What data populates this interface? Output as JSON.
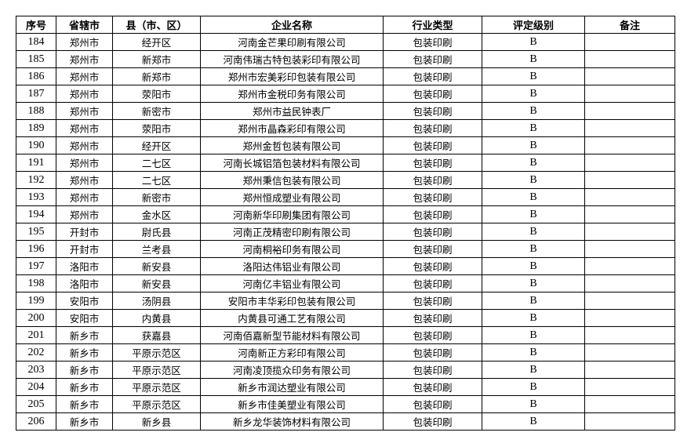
{
  "table": {
    "headers": [
      "序号",
      "省辖市",
      "县（市、区）",
      "企业名称",
      "行业类型",
      "评定级别",
      "备注"
    ],
    "rows": [
      [
        184,
        "郑州市",
        "经开区",
        "河南金芒果印刷有限公司",
        "包装印刷",
        "B"
      ],
      [
        185,
        "郑州市",
        "新郑市",
        "河南伟瑞古特包装彩印有限公司",
        "包装印刷",
        "B"
      ],
      [
        186,
        "郑州市",
        "新郑市",
        "郑州市宏美彩印包装有限公司",
        "包装印刷",
        "B"
      ],
      [
        187,
        "郑州市",
        "荥阳市",
        "郑州市金税印务有限公司",
        "包装印刷",
        "B"
      ],
      [
        188,
        "郑州市",
        "新密市",
        "郑州市益民钟表厂",
        "包装印刷",
        "B"
      ],
      [
        189,
        "郑州市",
        "荥阳市",
        "郑州市晶森彩印有限公司",
        "包装印刷",
        "B"
      ],
      [
        190,
        "郑州市",
        "经开区",
        "郑州金哲包装有限公司",
        "包装印刷",
        "B"
      ],
      [
        191,
        "郑州市",
        "二七区",
        "河南长城铝箔包装材料有限公司",
        "包装印刷",
        "B"
      ],
      [
        192,
        "郑州市",
        "二七区",
        "郑州秉信包装有限公司",
        "包装印刷",
        "B"
      ],
      [
        193,
        "郑州市",
        "新密市",
        "郑州恒成塑业有限公司",
        "包装印刷",
        "B"
      ],
      [
        194,
        "郑州市",
        "金水区",
        "河南新华印刷集团有限公司",
        "包装印刷",
        "B"
      ],
      [
        195,
        "开封市",
        "尉氏县",
        "河南正茂精密印刷有限公司",
        "包装印刷",
        "B"
      ],
      [
        196,
        "开封市",
        "兰考县",
        "河南桐裕印务有限公司",
        "包装印刷",
        "B"
      ],
      [
        197,
        "洛阳市",
        "新安县",
        "洛阳达伟铝业有限公司",
        "包装印刷",
        "B"
      ],
      [
        198,
        "洛阳市",
        "新安县",
        "河南亿丰铝业有限公司",
        "包装印刷",
        "B"
      ],
      [
        199,
        "安阳市",
        "汤阴县",
        "安阳市丰华彩印包装有限公司",
        "包装印刷",
        "B"
      ],
      [
        200,
        "安阳市",
        "内黄县",
        "内黄县可通工艺有限公司",
        "包装印刷",
        "B"
      ],
      [
        201,
        "新乡市",
        "获嘉县",
        "河南佰嘉新型节能材料有限公司",
        "包装印刷",
        "B"
      ],
      [
        202,
        "新乡市",
        "平原示范区",
        "河南新正方彩印有限公司",
        "包装印刷",
        "B"
      ],
      [
        203,
        "新乡市",
        "平原示范区",
        "河南凌顶揽众印务有限公司",
        "包装印刷",
        "B"
      ],
      [
        204,
        "新乡市",
        "平原示范区",
        "新乡市润达塑业有限公司",
        "包装印刷",
        "B"
      ],
      [
        205,
        "新乡市",
        "平原示范区",
        "新乡市佳美塑业有限公司",
        "包装印刷",
        "B"
      ],
      [
        206,
        "新乡市",
        "新乡县",
        "新乡龙华装饰材料有限公司",
        "包装印刷",
        "B"
      ]
    ]
  }
}
